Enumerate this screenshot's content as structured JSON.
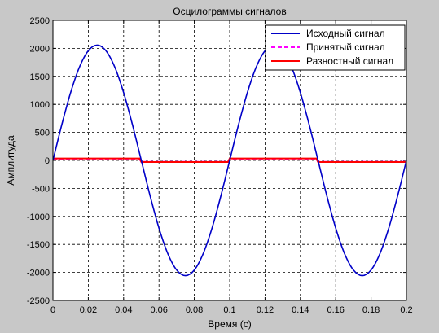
{
  "chart_data": {
    "type": "line",
    "title": "Осцилограммы сигналов",
    "xlabel": "Время (с)",
    "ylabel": "Амплитуда",
    "xlim": [
      0,
      0.2
    ],
    "ylim": [
      -2500,
      2500
    ],
    "grid": true,
    "legend_position": "top-right",
    "x_ticks": [
      0,
      0.02,
      0.04,
      0.06,
      0.08,
      0.1,
      0.12,
      0.14,
      0.16,
      0.18,
      0.2
    ],
    "x_tick_labels": [
      "0",
      "0.02",
      "0.04",
      "0.06",
      "0.08",
      "0.1",
      "0.12",
      "0.14",
      "0.16",
      "0.18",
      "0.2"
    ],
    "y_ticks": [
      -2500,
      -2000,
      -1500,
      -1000,
      -500,
      0,
      500,
      1000,
      1500,
      2000,
      2500
    ],
    "y_tick_labels": [
      "-2500",
      "-2000",
      "-1500",
      "-1000",
      "-500",
      "0",
      "500",
      "1000",
      "1500",
      "2000",
      "2500"
    ],
    "series": [
      {
        "name": "Исходный сигнал",
        "color": "#0000c8",
        "dash": "solid",
        "x": [
          0,
          0.005,
          0.01,
          0.015,
          0.02,
          0.025,
          0.03,
          0.035,
          0.04,
          0.045,
          0.05,
          0.055,
          0.06,
          0.065,
          0.07,
          0.075,
          0.08,
          0.085,
          0.09,
          0.095,
          0.1,
          0.105,
          0.11,
          0.115,
          0.12,
          0.125,
          0.13,
          0.135,
          0.14,
          0.145,
          0.15,
          0.155,
          0.16,
          0.165,
          0.17,
          0.175,
          0.18,
          0.185,
          0.19,
          0.195,
          0.2
        ],
        "y": [
          0,
          636,
          1210,
          1665,
          1957,
          2058,
          1957,
          1665,
          1210,
          636,
          0,
          -636,
          -1210,
          -1665,
          -1957,
          -2058,
          -1957,
          -1665,
          -1210,
          -636,
          0,
          636,
          1210,
          1665,
          1957,
          2058,
          1957,
          1665,
          1210,
          636,
          0,
          -636,
          -1210,
          -1665,
          -1957,
          -2058,
          -1957,
          -1665,
          -1210,
          -636,
          0
        ]
      },
      {
        "name": "Принятый сигнал",
        "color": "#ff00ff",
        "dash": "dashed",
        "x": [
          0,
          0.049,
          0.05,
          0.099,
          0.1,
          0.149,
          0.15,
          0.2
        ],
        "y": [
          20,
          20,
          -25,
          -25,
          20,
          20,
          -25,
          -25
        ]
      },
      {
        "name": "Разностный сигнал",
        "color": "#ff0000",
        "dash": "solid",
        "x": [
          0,
          0.049,
          0.05,
          0.099,
          0.1,
          0.149,
          0.15,
          0.2
        ],
        "y": [
          35,
          35,
          -30,
          -30,
          35,
          35,
          -30,
          -30
        ]
      }
    ]
  }
}
